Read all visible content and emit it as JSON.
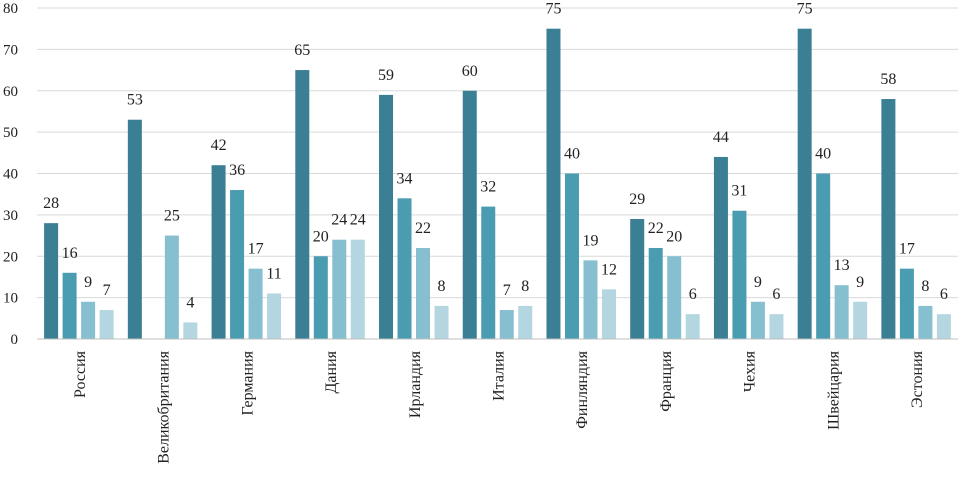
{
  "chart_data": {
    "type": "bar",
    "title": "",
    "xlabel": "",
    "ylabel": "",
    "ylim": [
      0,
      80
    ],
    "yticks": [
      "0",
      "10",
      "20",
      "30",
      "40",
      "50",
      "60",
      "70",
      "80"
    ],
    "grid": true,
    "legend": "none",
    "categories": [
      "Россия",
      "Великобритания",
      "Германия",
      "Дания",
      "Ирландия",
      "Италия",
      "Финляндия",
      "Франция",
      "Чехия",
      "Швейцария",
      "Эстония"
    ],
    "series": [
      {
        "name": "series-1",
        "color": "#3a7f94",
        "values": [
          28,
          53,
          42,
          65,
          59,
          60,
          75,
          29,
          44,
          75,
          58
        ]
      },
      {
        "name": "series-2",
        "color": "#4a9cb1",
        "values": [
          16,
          null,
          36,
          20,
          34,
          32,
          40,
          22,
          31,
          40,
          17
        ]
      },
      {
        "name": "series-3",
        "color": "#86bfd0",
        "values": [
          9,
          25,
          17,
          24,
          22,
          7,
          19,
          20,
          9,
          13,
          8
        ]
      },
      {
        "name": "series-4",
        "color": "#b3d6e1",
        "values": [
          7,
          4,
          11,
          24,
          8,
          8,
          12,
          6,
          6,
          9,
          6
        ]
      }
    ]
  }
}
